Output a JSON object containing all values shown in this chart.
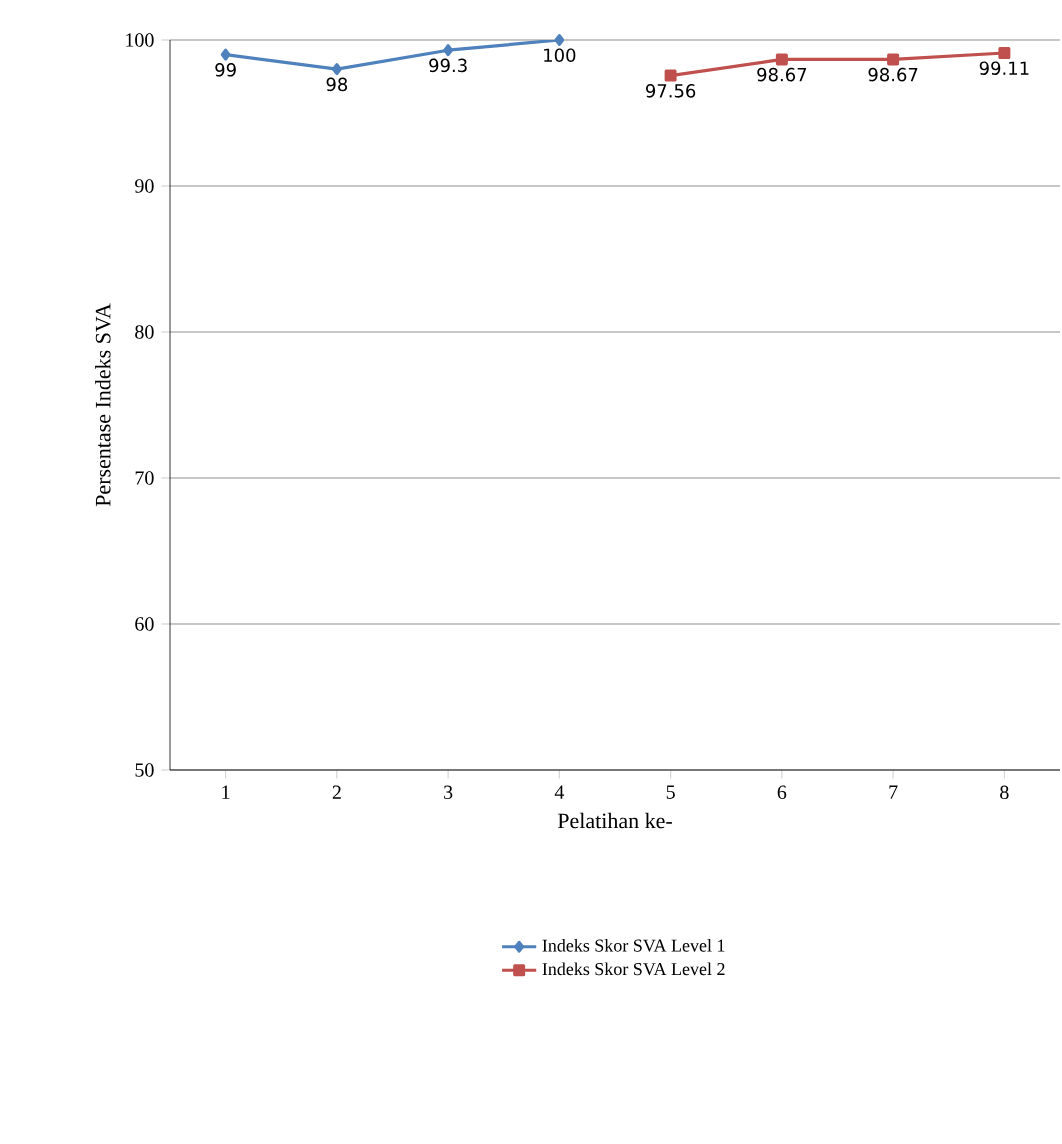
{
  "chart_data": {
    "type": "line",
    "xlabel": "Pelatihan ke-",
    "ylabel": "Persentase Indeks SVA",
    "categories": [
      "1",
      "2",
      "3",
      "4",
      "5",
      "6",
      "7",
      "8"
    ],
    "series": [
      {
        "name": "Indeks Skor SVA Level 1",
        "color": "#4f81bd",
        "marker": "diamond",
        "values": [
          99,
          98,
          99.3,
          100,
          null,
          null,
          null,
          null
        ],
        "value_labels": [
          "99",
          "98",
          "99.3",
          "100",
          null,
          null,
          null,
          null
        ]
      },
      {
        "name": "Indeks Skor SVA Level 2",
        "color": "#c0504d",
        "marker": "square",
        "values": [
          null,
          null,
          null,
          null,
          97.56,
          98.67,
          98.67,
          99.11
        ],
        "value_labels": [
          null,
          null,
          null,
          null,
          "97.56",
          "98.67",
          "98.67",
          "99.11"
        ]
      }
    ],
    "ylim": [
      50,
      100
    ],
    "yticks": [
      50,
      60,
      70,
      80,
      90,
      100
    ],
    "grid": "y",
    "legend": "bottom",
    "line_style": "solid"
  }
}
